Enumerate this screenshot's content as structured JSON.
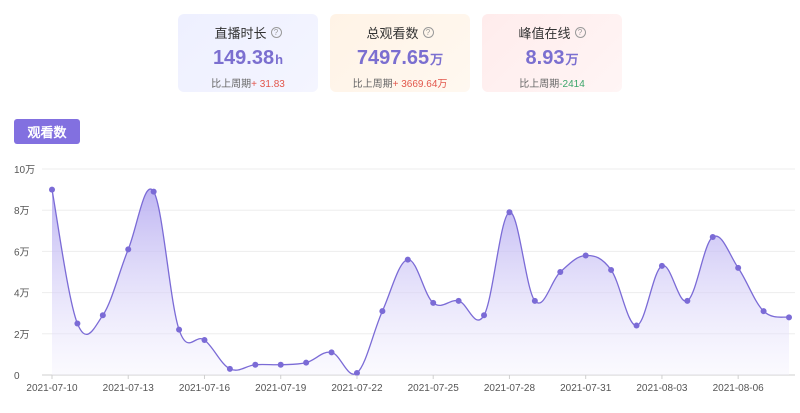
{
  "stats": [
    {
      "title": "直播时长",
      "value": "149.38",
      "unit": "h",
      "compare_label": "比上周期",
      "delta": "+ 31.83",
      "delta_color": "#e2574c"
    },
    {
      "title": "总观看数",
      "value": "7497.65",
      "unit": "万",
      "compare_label": "比上周期",
      "delta": "+ 3669.64万",
      "delta_color": "#e2574c"
    },
    {
      "title": "峰值在线",
      "value": "8.93",
      "unit": "万",
      "compare_label": "比上周期",
      "delta": "-2414",
      "delta_color": "#3ba56a"
    }
  ],
  "tab": {
    "label": "观看数"
  },
  "colors": {
    "accent": "#8270e0",
    "line": "#7b6bd6",
    "area_top": "#b3a8f0",
    "area_bottom": "#f4f2fe"
  },
  "chart_data": {
    "type": "area",
    "x": [
      "2021-07-10",
      "2021-07-11",
      "2021-07-12",
      "2021-07-13",
      "2021-07-14",
      "2021-07-15",
      "2021-07-16",
      "2021-07-17",
      "2021-07-18",
      "2021-07-19",
      "2021-07-20",
      "2021-07-21",
      "2021-07-22",
      "2021-07-23",
      "2021-07-24",
      "2021-07-25",
      "2021-07-26",
      "2021-07-27",
      "2021-07-28",
      "2021-07-29",
      "2021-07-30",
      "2021-07-31",
      "2021-08-01",
      "2021-08-02",
      "2021-08-03",
      "2021-08-04",
      "2021-08-05",
      "2021-08-06",
      "2021-08-07",
      "2021-08-08"
    ],
    "series": [
      {
        "values": [
          9.0,
          2.5,
          2.9,
          6.1,
          8.9,
          2.2,
          1.7,
          0.3,
          0.5,
          0.5,
          0.6,
          1.1,
          0.1,
          3.1,
          5.6,
          3.5,
          3.6,
          2.9,
          7.9,
          3.6,
          5.0,
          5.8,
          5.1,
          2.4,
          5.3,
          3.6,
          6.7,
          5.2,
          3.1,
          2.8
        ]
      }
    ],
    "y_ticks": [
      "0",
      "2万",
      "4万",
      "6万",
      "8万",
      "10万"
    ],
    "ylim": [
      0,
      10
    ],
    "x_tick_labels": [
      "2021-07-10",
      "2021-07-13",
      "2021-07-16",
      "2021-07-19",
      "2021-07-22",
      "2021-07-25",
      "2021-07-28",
      "2021-07-31",
      "2021-08-03",
      "2021-08-06"
    ],
    "x_tick_every": 3,
    "grid": true
  }
}
